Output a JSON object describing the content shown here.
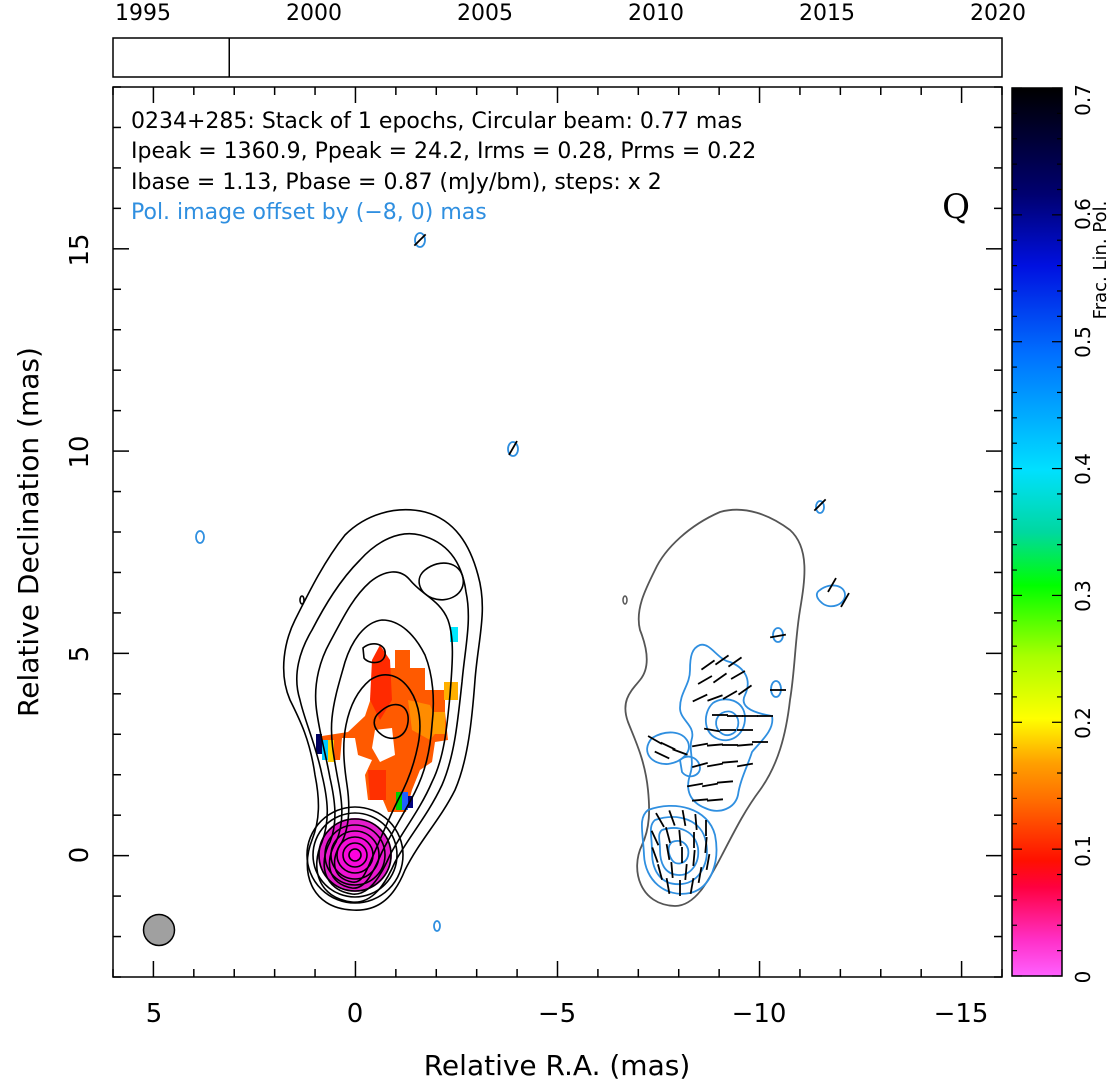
{
  "timeline": {
    "years": [
      "1995",
      "2000",
      "2005",
      "2010",
      "2015",
      "2020"
    ],
    "epoch_marker": 1997.6
  },
  "annotations": {
    "line1": "0234+285: Stack of 1 epochs, Circular beam: 0.77 mas",
    "line2": "Ipeak = 1360.9, Ppeak = 24.2, Irms = 0.28, Prms = 0.22",
    "line3": "Ibase = 1.13, Pbase = 0.87 (mJy/bm), steps: x 2",
    "line4": "Pol. image offset by (−8, 0) mas",
    "band": "Q"
  },
  "colors": {
    "pol_contour": "#2f8fe0",
    "total_contour": "#000000",
    "outline_contour": "#555555",
    "beam": "#a0a0a0",
    "annotation_blue": "#2f8fe0"
  },
  "chart_data": {
    "type": "heatmap",
    "xlabel": "Relative R.A. (mas)",
    "ylabel": "Relative Declination (mas)",
    "xlim": [
      6,
      -16
    ],
    "ylim": [
      -3,
      19
    ],
    "xticks": [
      5,
      0,
      -5,
      -10,
      -15
    ],
    "xtick_labels": [
      "5",
      "0",
      "−5",
      "−10",
      "−15"
    ],
    "yticks": [
      0,
      5,
      10,
      15
    ],
    "ytick_labels": [
      "0",
      "5",
      "10",
      "15"
    ],
    "colorbar": {
      "label": "Frac. Lin. Pol.",
      "range": [
        0,
        0.7
      ],
      "ticks": [
        "0",
        "0.1",
        "0.2",
        "0.3",
        "0.4",
        "0.5",
        "0.6",
        "0.7"
      ]
    },
    "beam_diameter_mas": 0.77,
    "beam_center_mas": [
      4.95,
      -1.85
    ]
  }
}
